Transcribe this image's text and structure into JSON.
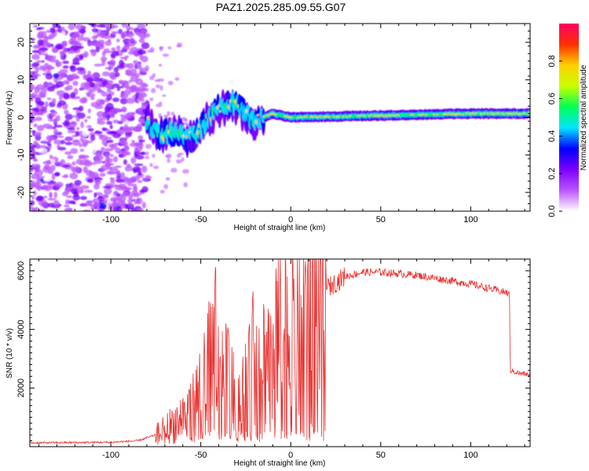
{
  "window": {
    "title": "PAZ1.2025.285.09.55.G07"
  },
  "chart_data": [
    {
      "type": "heatmap",
      "title": "PAZ1.2025.285.09.55.G07",
      "xlabel": "Height of straight line (km)",
      "ylabel": "Frequency (Hz)",
      "xlim": [
        -145,
        133
      ],
      "ylim": [
        -25,
        25
      ],
      "xticks": [
        -100,
        -50,
        0,
        50,
        100
      ],
      "yticks": [
        -20,
        -10,
        0,
        10,
        20
      ],
      "noise_region_x": [
        -145,
        -80
      ],
      "signal_track": [
        {
          "x": -80,
          "y": -1
        },
        {
          "x": -72,
          "y": -5
        },
        {
          "x": -65,
          "y": -4
        },
        {
          "x": -57,
          "y": -6
        },
        {
          "x": -50,
          "y": -3
        },
        {
          "x": -45,
          "y": 0
        },
        {
          "x": -38,
          "y": 3
        },
        {
          "x": -33,
          "y": 4
        },
        {
          "x": -27,
          "y": 2
        },
        {
          "x": -20,
          "y": -1
        },
        {
          "x": -10,
          "y": 1
        },
        {
          "x": 0,
          "y": 0
        },
        {
          "x": 50,
          "y": 0.5
        },
        {
          "x": 100,
          "y": 1
        },
        {
          "x": 133,
          "y": 1
        }
      ],
      "colorbar": {
        "label": "Normalized spectral amplitude",
        "range": [
          0,
          1
        ],
        "ticks": [
          "0.0",
          "0.2",
          "0.4",
          "0.6",
          "0.8"
        ],
        "tick_values": [
          0.0,
          0.2,
          0.4,
          0.6,
          0.8
        ],
        "colors": [
          "#ffffff",
          "#bb55ff",
          "#7a00ff",
          "#0000ff",
          "#00e5ff",
          "#00ff55",
          "#c8ff00",
          "#ffd000",
          "#ff3000",
          "#ff0066"
        ]
      }
    },
    {
      "type": "line",
      "xlabel": "Height of straight line (km)",
      "ylabel": "SNR (10 * v/v)",
      "xlim": [
        -145,
        133
      ],
      "ylim": [
        0,
        6400
      ],
      "xticks": [
        -100,
        -50,
        0,
        50,
        100
      ],
      "yticks": [
        2000,
        4000,
        6000
      ],
      "line_color": "#e8312f",
      "series": [
        {
          "x": -145,
          "y": 130
        },
        {
          "x": -120,
          "y": 140
        },
        {
          "x": -100,
          "y": 150
        },
        {
          "x": -85,
          "y": 200
        },
        {
          "x": -75,
          "y": 400
        },
        {
          "x": -65,
          "y": 800
        },
        {
          "x": -55,
          "y": 1300
        },
        {
          "x": -48,
          "y": 2100
        },
        {
          "x": -43,
          "y": 3200
        },
        {
          "x": -38,
          "y": 2500
        },
        {
          "x": -30,
          "y": 1500
        },
        {
          "x": -25,
          "y": 2000
        },
        {
          "x": -20,
          "y": 2500
        },
        {
          "x": -15,
          "y": 3000
        },
        {
          "x": -10,
          "y": 3400
        },
        {
          "x": -5,
          "y": 3700
        },
        {
          "x": 0,
          "y": 4000
        },
        {
          "x": 5,
          "y": 4400
        },
        {
          "x": 10,
          "y": 4900
        },
        {
          "x": 15,
          "y": 5200
        },
        {
          "x": 20,
          "y": 5400
        },
        {
          "x": 25,
          "y": 5600
        },
        {
          "x": 30,
          "y": 5800
        },
        {
          "x": 40,
          "y": 5950
        },
        {
          "x": 50,
          "y": 5950
        },
        {
          "x": 60,
          "y": 5900
        },
        {
          "x": 70,
          "y": 5850
        },
        {
          "x": 80,
          "y": 5750
        },
        {
          "x": 90,
          "y": 5650
        },
        {
          "x": 100,
          "y": 5550
        },
        {
          "x": 110,
          "y": 5400
        },
        {
          "x": 120,
          "y": 5250
        },
        {
          "x": 121.5,
          "y": 5200
        },
        {
          "x": 122,
          "y": 2600
        },
        {
          "x": 127,
          "y": 2500
        },
        {
          "x": 133,
          "y": 2450
        }
      ],
      "spikes": [
        {
          "x": -42,
          "y": 6200
        },
        {
          "x": -35,
          "y": 4600
        },
        {
          "x": -21,
          "y": 5500
        },
        {
          "x": -8,
          "y": 6100
        },
        {
          "x": 8,
          "y": 6350
        },
        {
          "x": 20,
          "y": 6100
        }
      ]
    }
  ]
}
